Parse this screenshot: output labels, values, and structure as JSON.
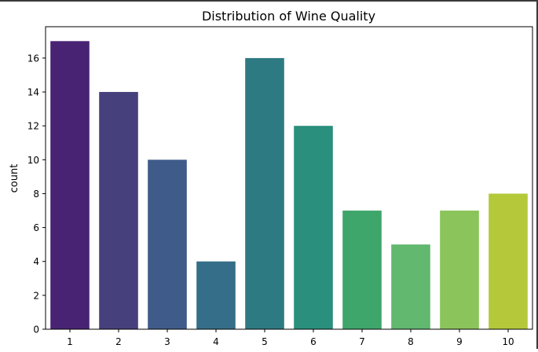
{
  "chart_data": {
    "type": "bar",
    "title": "Distribution of Wine Quality",
    "xlabel": "",
    "ylabel": "count",
    "categories": [
      "1",
      "2",
      "3",
      "4",
      "5",
      "6",
      "7",
      "8",
      "9",
      "10"
    ],
    "values": [
      17,
      14,
      10,
      4,
      16,
      12,
      7,
      5,
      7,
      8
    ],
    "colors": [
      "#482374",
      "#46407c",
      "#3f5b8a",
      "#356e89",
      "#2e7a82",
      "#2a8f7d",
      "#3fa66b",
      "#61b86e",
      "#8ac45a",
      "#b4c83a"
    ],
    "ylim": [
      0,
      17.85
    ],
    "yticks": [
      0,
      2,
      4,
      6,
      8,
      10,
      12,
      14,
      16
    ],
    "grid": false,
    "legend": "none"
  }
}
